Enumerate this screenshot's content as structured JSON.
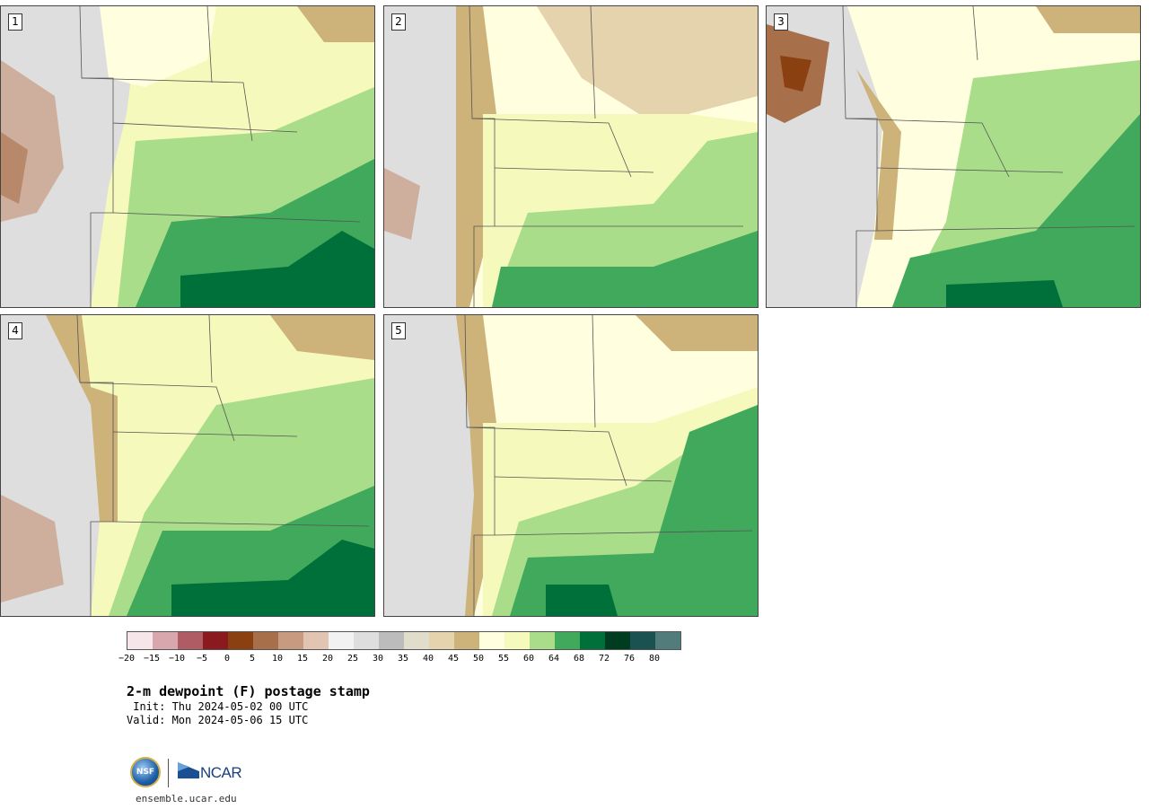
{
  "title": "2-m dewpoint (F) postage stamp",
  "init": " Init: Thu 2024-05-02 00 UTC",
  "valid": "Valid: Mon 2024-05-06 15 UTC",
  "site": "ensemble.ucar.edu",
  "logos": {
    "nsf_text": "NSF",
    "ncar_text": "NCAR"
  },
  "panels": [
    {
      "number": "1"
    },
    {
      "number": "2"
    },
    {
      "number": "3"
    },
    {
      "number": "4"
    },
    {
      "number": "5"
    }
  ],
  "colorbar": {
    "colors": [
      "#f6e6ea",
      "#d8a6ad",
      "#b05c64",
      "#8b1a1e",
      "#8a4010",
      "#a8704a",
      "#c89a80",
      "#e2c4b2",
      "#f2f2f2",
      "#dedede",
      "#bcbcbc",
      "#e0ddcb",
      "#e4d3ad",
      "#cdb27a",
      "#ffffe0",
      "#f6f9bc",
      "#a9dd8a",
      "#40a95b",
      "#00703a",
      "#003d20",
      "#1a5252",
      "#527b7b"
    ],
    "ticks": [
      "−20",
      "−15",
      "−10",
      "−5",
      "0",
      "5",
      "10",
      "15",
      "20",
      "25",
      "30",
      "35",
      "40",
      "45",
      "50",
      "55",
      "60",
      "64",
      "68",
      "72",
      "76",
      "80"
    ]
  }
}
